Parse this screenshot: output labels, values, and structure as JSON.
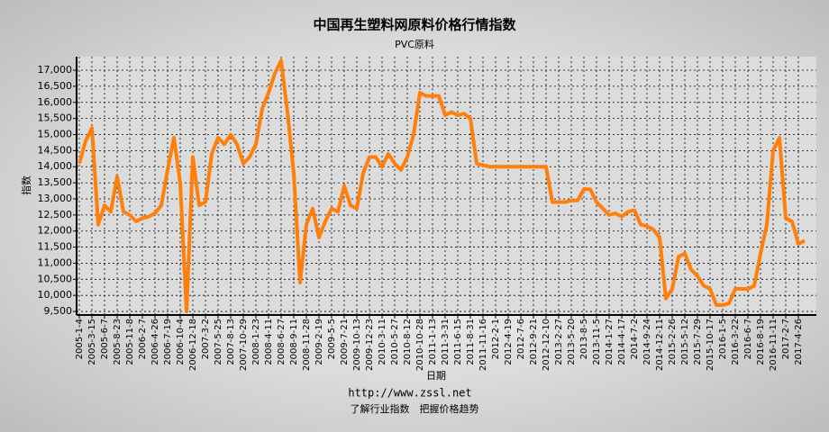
{
  "chart_data": {
    "type": "line",
    "title": "中国再生塑料网原料价格行情指数",
    "subtitle": "PVC原料",
    "y_label": "指数",
    "x_label": "日期",
    "footer_url": "http://www.zssl.net",
    "footer_slogan": "了解行业指数　把握价格趋势",
    "color": "#ff7f0a",
    "grid": true,
    "ylim": [
      9390,
      17420
    ],
    "yticks": [
      {
        "value": 9500,
        "label": "9,500"
      },
      {
        "value": 10000,
        "label": "10,000"
      },
      {
        "value": 10500,
        "label": "10,500"
      },
      {
        "value": 11000,
        "label": "11,000"
      },
      {
        "value": 11500,
        "label": "11,500"
      },
      {
        "value": 12000,
        "label": "12,000"
      },
      {
        "value": 12500,
        "label": "12,500"
      },
      {
        "value": 13000,
        "label": "13,000"
      },
      {
        "value": 13500,
        "label": "13,500"
      },
      {
        "value": 14000,
        "label": "14,000"
      },
      {
        "value": 14500,
        "label": "14,500"
      },
      {
        "value": 15000,
        "label": "15,000"
      },
      {
        "value": 15500,
        "label": "15,500"
      },
      {
        "value": 16000,
        "label": "16,000"
      },
      {
        "value": 16500,
        "label": "16,500"
      },
      {
        "value": 17000,
        "label": "17,000"
      }
    ],
    "categories": [
      "2005-1-4",
      null,
      "2005-3-15",
      null,
      "2005-6-7",
      null,
      "2005-8-23",
      null,
      "2005-11-8",
      null,
      "2006-2-7",
      null,
      "2006-4-26",
      null,
      "2006-7-19",
      null,
      "2006-10-4",
      null,
      "2006-12-18",
      null,
      "2007-3-2",
      null,
      "2007-5-25",
      null,
      "2007-8-13",
      null,
      "2007-10-29",
      null,
      "2008-1-23",
      null,
      "2008-4-11",
      null,
      "2008-6-27",
      null,
      "2008-9-11",
      null,
      "2008-11-28",
      null,
      "2009-2-19",
      null,
      "2009-5-5",
      null,
      "2009-7-21",
      null,
      "2009-10-13",
      null,
      "2009-12-23",
      null,
      "2010-3-11",
      null,
      "2010-5-27",
      null,
      "2010-8-12",
      null,
      "2010-10-28",
      null,
      "2011-1-13",
      null,
      "2011-3-31",
      null,
      "2011-6-15",
      null,
      "2011-8-31",
      null,
      "2011-11-16",
      null,
      "2012-2-1",
      null,
      "2012-4-19",
      null,
      "2012-7-6",
      null,
      "2012-9-21",
      null,
      "2012-12-10",
      null,
      "2013-2-27",
      null,
      "2013-5-20",
      null,
      "2013-8-5",
      null,
      "2013-11-5",
      null,
      "2014-1-27",
      null,
      "2014-4-17",
      null,
      "2014-7-2",
      null,
      "2014-9-24",
      null,
      "2014-12-11",
      null,
      "2015-2-26",
      null,
      "2015-5-12",
      null,
      "2015-7-29",
      null,
      "2015-10-17",
      null,
      "2016-1-5",
      null,
      "2016-3-22",
      null,
      "2016-6-7",
      null,
      "2016-8-19",
      null,
      "2016-11-11",
      null,
      "2017-2-7",
      null,
      "2017-4-26",
      null
    ],
    "values": [
      14100,
      14800,
      15200,
      12200,
      12800,
      12600,
      13700,
      12600,
      12500,
      12300,
      12400,
      12450,
      12550,
      12800,
      13900,
      14900,
      13500,
      9500,
      14300,
      12800,
      12900,
      14400,
      14900,
      14700,
      15000,
      14700,
      14100,
      14300,
      14700,
      15800,
      16300,
      16900,
      17300,
      15700,
      13800,
      10400,
      12200,
      12700,
      11800,
      12300,
      12700,
      12600,
      13400,
      12800,
      12700,
      13800,
      14300,
      14300,
      14000,
      14400,
      14100,
      13900,
      14300,
      15000,
      16300,
      16200,
      16200,
      16200,
      15600,
      15700,
      15600,
      15650,
      15500,
      14100,
      14050,
      14000,
      14000,
      14000,
      14000,
      14000,
      14000,
      14000,
      14000,
      14000,
      14000,
      12900,
      12900,
      12900,
      12950,
      12950,
      13300,
      13300,
      12900,
      12700,
      12500,
      12550,
      12450,
      12600,
      12650,
      12200,
      12150,
      12050,
      11800,
      9900,
      10200,
      11200,
      11300,
      10800,
      10600,
      10300,
      10200,
      9700,
      9700,
      9750,
      10200,
      10200,
      10200,
      10300,
      11300,
      12200,
      14500,
      14900,
      12400,
      12300,
      11600,
      11700
    ]
  }
}
